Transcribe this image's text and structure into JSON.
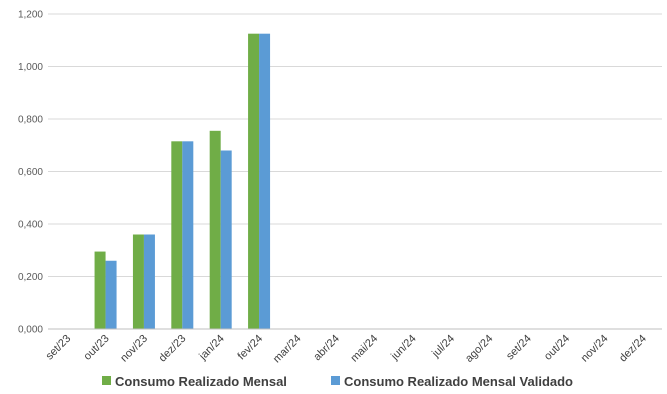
{
  "chart_data": {
    "type": "bar",
    "categories": [
      "set/23",
      "out/23",
      "nov/23",
      "dez/23",
      "jan/24",
      "fev/24",
      "mar/24",
      "abr/24",
      "mai/24",
      "jun/24",
      "jul/24",
      "ago/24",
      "set/24",
      "out/24",
      "nov/24",
      "dez/24"
    ],
    "series": [
      {
        "name": "Consumo Realizado Mensal",
        "color": "#70AD47",
        "values": [
          null,
          0.295,
          0.36,
          0.715,
          0.755,
          1.125,
          null,
          null,
          null,
          null,
          null,
          null,
          null,
          null,
          null,
          null
        ]
      },
      {
        "name": "Consumo Realizado Mensal Validado",
        "color": "#5B9BD5",
        "values": [
          null,
          0.26,
          0.36,
          0.715,
          0.68,
          1.125,
          null,
          null,
          null,
          null,
          null,
          null,
          null,
          null,
          null,
          null
        ]
      }
    ],
    "y_ticks": [
      "0,000",
      "0,200",
      "0,400",
      "0,600",
      "0,800",
      "1,000",
      "1,200"
    ],
    "ylim": [
      0,
      1.2
    ],
    "grid": true,
    "legend_position": "bottom"
  }
}
